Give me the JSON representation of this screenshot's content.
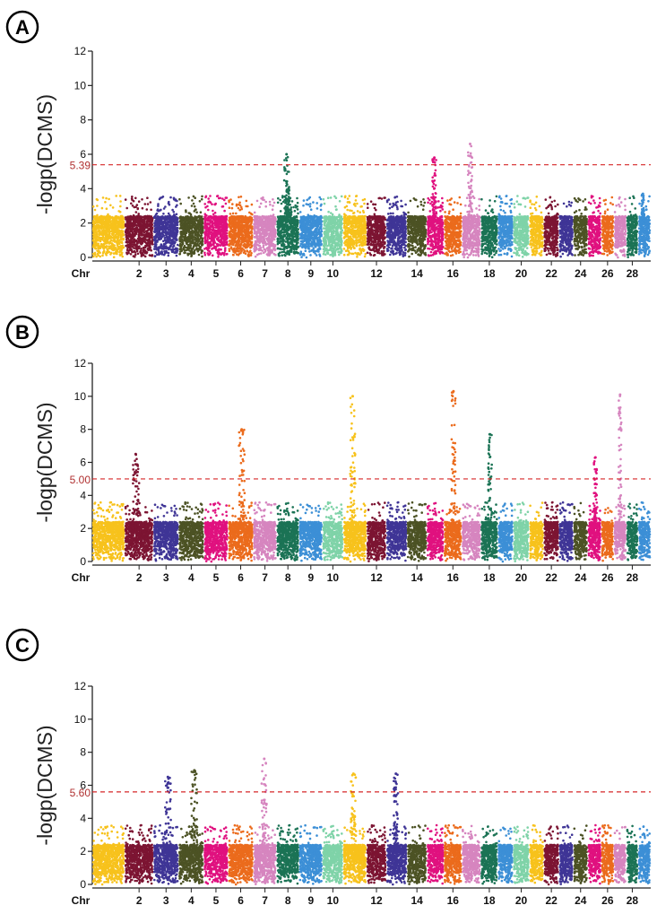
{
  "chart_data": [
    {
      "panel": "A",
      "type": "scatter",
      "chart_kind": "manhattan",
      "ylabel": "-logp(DCMS)",
      "xlabel": "Chr",
      "ylim": [
        0,
        12
      ],
      "yticks": [
        "0",
        "2",
        "4",
        "6",
        "8",
        "10",
        "12"
      ],
      "threshold": 5.39,
      "threshold_label": "5.39",
      "xtick_labels": [
        "Chr",
        "2",
        "3",
        "4",
        "5",
        "6",
        "7",
        "8",
        "9",
        "10",
        "12",
        "14",
        "16",
        "18",
        "20",
        "22",
        "24",
        "26",
        "28"
      ],
      "peaks": [
        {
          "chr": 15,
          "max": 5.8
        },
        {
          "chr": 17,
          "max": 6.6
        },
        {
          "chr": 8,
          "max": 6.0
        },
        {
          "chr": 8,
          "max": 3.9
        },
        {
          "chr": 29,
          "max": 3.7
        }
      ]
    },
    {
      "panel": "B",
      "type": "scatter",
      "chart_kind": "manhattan",
      "ylabel": "-logp(DCMS)",
      "xlabel": "Chr",
      "ylim": [
        0,
        12
      ],
      "yticks": [
        "0",
        "2",
        "4",
        "6",
        "8",
        "10",
        "12"
      ],
      "threshold": 5.0,
      "threshold_label": "5.00",
      "xtick_labels": [
        "Chr",
        "2",
        "3",
        "4",
        "5",
        "6",
        "7",
        "8",
        "9",
        "10",
        "12",
        "14",
        "16",
        "18",
        "20",
        "22",
        "24",
        "26",
        "28"
      ],
      "peaks": [
        {
          "chr": 11,
          "max": 10.0
        },
        {
          "chr": 16,
          "max": 10.3
        },
        {
          "chr": 27,
          "max": 10.1
        },
        {
          "chr": 6,
          "max": 8.0
        },
        {
          "chr": 18,
          "max": 7.7
        },
        {
          "chr": 25,
          "max": 6.3
        },
        {
          "chr": 2,
          "max": 6.5
        }
      ]
    },
    {
      "panel": "C",
      "type": "scatter",
      "chart_kind": "manhattan",
      "ylabel": "-logp(DCMS)",
      "xlabel": "Chr",
      "ylim": [
        0,
        12
      ],
      "yticks": [
        "0",
        "2",
        "4",
        "6",
        "8",
        "10",
        "12"
      ],
      "threshold": 5.6,
      "threshold_label": "5.60",
      "xtick_labels": [
        "Chr",
        "2",
        "3",
        "4",
        "5",
        "6",
        "7",
        "8",
        "9",
        "10",
        "12",
        "14",
        "16",
        "18",
        "20",
        "22",
        "24",
        "26",
        "28"
      ],
      "peaks": [
        {
          "chr": 7,
          "max": 7.6
        },
        {
          "chr": 4,
          "max": 6.9
        },
        {
          "chr": 3,
          "max": 6.5
        },
        {
          "chr": 13,
          "max": 6.7
        },
        {
          "chr": 11,
          "max": 6.7
        }
      ]
    }
  ],
  "chromosomes": [
    "1",
    "2",
    "3",
    "4",
    "5",
    "6",
    "7",
    "8",
    "9",
    "10",
    "11",
    "12",
    "13",
    "14",
    "15",
    "16",
    "17",
    "18",
    "19",
    "20",
    "21",
    "22",
    "23",
    "24",
    "25",
    "26",
    "27",
    "28",
    "29"
  ],
  "colors": [
    "#f7c21c",
    "#7c1432",
    "#3f3596",
    "#4c5224",
    "#e0117f",
    "#eb6b1c",
    "#d685bf",
    "#1b7355",
    "#3c8fd6",
    "#7fd3a8"
  ],
  "threshold_color": "#d62728"
}
